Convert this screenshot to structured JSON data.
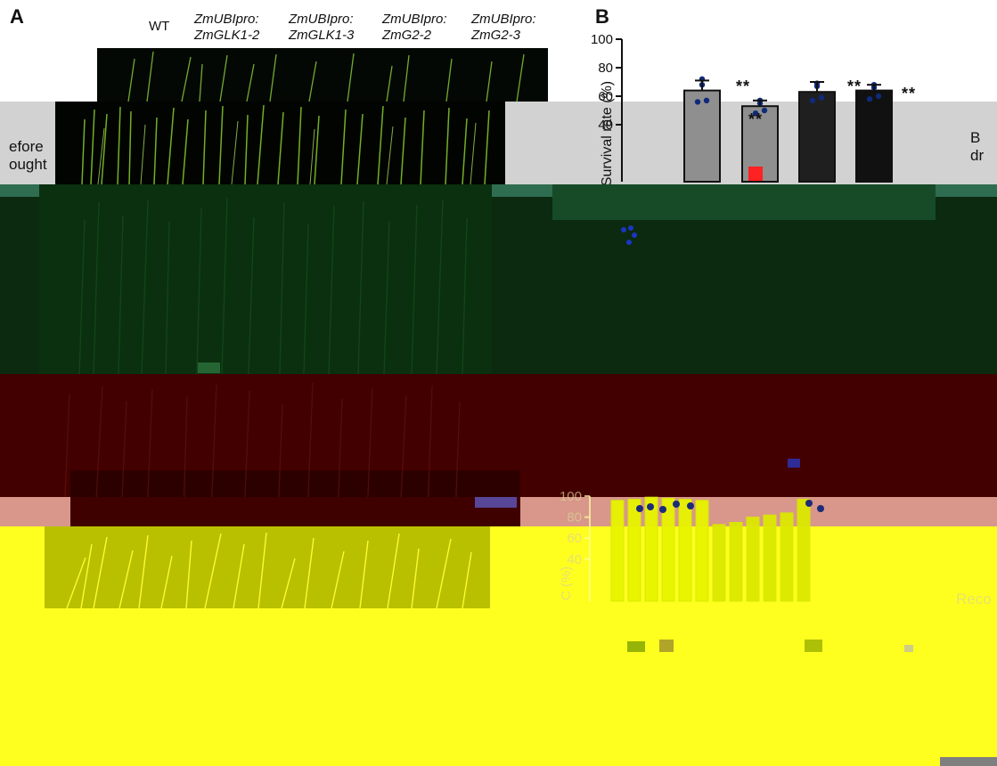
{
  "figure": {
    "panels": {
      "a": "A",
      "b": "B"
    },
    "columns": {
      "wt": "WT",
      "glk1_2": "ZmUBIpro:\nZmGLK1-2",
      "glk1_3": "ZmUBIpro:\nZmGLK1-3",
      "g2_2": "ZmUBIpro:\nZmG2-2",
      "g2_3": "ZmUBIpro:\nZmG2-3"
    },
    "rows": {
      "before_left": "efore\nought",
      "before_right": "B\ndr",
      "recovery_right": "Reco"
    },
    "significance": {
      "a": "**",
      "b": "**",
      "c": "**",
      "d": "**"
    },
    "axes": {
      "b_ylabel": "Survival rate (%)",
      "c_ylabel": "C (%)"
    },
    "colors": {
      "gray_band": "#d2d2d2",
      "green_band": "#0c2b10",
      "dark_green_band": "#0a360f",
      "maroon_band": "#420000",
      "salmon_band": "#d7978a",
      "yellow_band": "#ffff20",
      "yellow_accent": "#f2f000",
      "bar_gray": "#8f8f8f",
      "bar_dark": "#1f1f1f",
      "dot_blue": "#0f2a7a",
      "red_box": "#ff2222"
    }
  },
  "chart_data": [
    {
      "type": "bar",
      "title": "",
      "xlabel": "",
      "ylabel": "Survival rate (%)",
      "ylim": [
        0,
        100
      ],
      "yticks": [
        100,
        80,
        60,
        40
      ],
      "categories": [
        "",
        "",
        "",
        ""
      ],
      "values": [
        64,
        53,
        63,
        64
      ],
      "errors": [
        7,
        4,
        7,
        4
      ],
      "points": [
        [
          56,
          57,
          68,
          72
        ],
        [
          48,
          50,
          55,
          57
        ],
        [
          57,
          59,
          67,
          69
        ],
        [
          58,
          60,
          66,
          68
        ]
      ],
      "significance": [
        "",
        "**",
        "",
        "**"
      ],
      "grid": false,
      "legend": "none"
    },
    {
      "type": "bar",
      "title": "",
      "xlabel": "",
      "ylabel": "C (%)",
      "ylim": [
        0,
        100
      ],
      "yticks": [
        100,
        80,
        60,
        40
      ],
      "categories": [
        "",
        "",
        "",
        "",
        "",
        "",
        "",
        "",
        "",
        "",
        "",
        ""
      ],
      "values": [
        96,
        97,
        99,
        98,
        97,
        96,
        73,
        75,
        80,
        82,
        84,
        97
      ],
      "grid": false,
      "legend": "none"
    }
  ]
}
